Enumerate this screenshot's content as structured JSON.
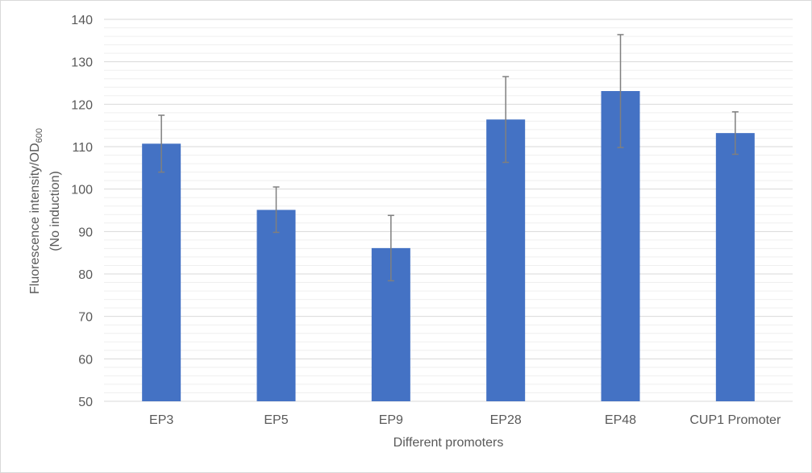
{
  "chart_data": {
    "type": "bar",
    "categories": [
      "EP3",
      "EP5",
      "EP9",
      "EP28",
      "EP48",
      "CUP1 Promoter"
    ],
    "series": [
      {
        "values": [
          110.7,
          95.1,
          86.1,
          116.4,
          123.1,
          113.2
        ],
        "error_low": [
          104.0,
          89.8,
          78.4,
          106.3,
          109.8,
          108.2
        ],
        "error_high": [
          117.4,
          100.5,
          93.8,
          126.5,
          136.4,
          118.2
        ]
      }
    ],
    "xlabel": "Different promoters",
    "ylabel": {
      "line1_main": "Fluorescence intensity/OD",
      "line1_sub": "600",
      "line2": "(No induction)"
    },
    "ylim": [
      50,
      140
    ],
    "ytick_step": 10,
    "yticks": [
      "50",
      "60",
      "70",
      "80",
      "90",
      "100",
      "110",
      "120",
      "130",
      "140"
    ],
    "minor_grid": true,
    "grid": true,
    "legend": "none",
    "colors": {
      "bar": "#4472c4",
      "error_bar": "#7f7f7f",
      "major_grid": "#d9d9d9",
      "minor_grid": "#efefef",
      "axis": "#d9d9d9",
      "text": "#595959"
    }
  }
}
